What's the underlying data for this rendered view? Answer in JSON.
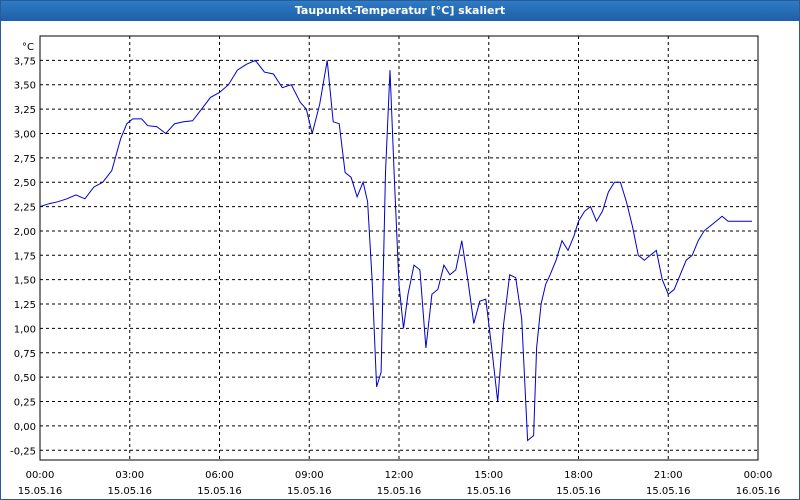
{
  "window": {
    "title": "Taupunkt-Temperatur [°C] skaliert"
  },
  "colors": {
    "line": "#0000cc",
    "grid": "#000000",
    "title_bg": "#1f5fa8"
  },
  "chart_data": {
    "type": "line",
    "title": "Taupunkt-Temperatur [°C] skaliert",
    "ylabel": "°C",
    "xlabel": "",
    "grid": true,
    "ylim": [
      -0.35,
      4.0
    ],
    "xlim": [
      0,
      24
    ],
    "yticks": [
      "-0,25",
      "0,00",
      "0,25",
      "0,50",
      "0,75",
      "1,00",
      "1,25",
      "1,50",
      "1,75",
      "2,00",
      "2,25",
      "2,50",
      "2,75",
      "3,00",
      "3,25",
      "3,50",
      "3,75"
    ],
    "ytick_values": [
      -0.25,
      0,
      0.25,
      0.5,
      0.75,
      1.0,
      1.25,
      1.5,
      1.75,
      2.0,
      2.25,
      2.5,
      2.75,
      3.0,
      3.25,
      3.5,
      3.75
    ],
    "xticks": [
      {
        "time": "00:00",
        "date": "15.05.16",
        "hour": 0
      },
      {
        "time": "03:00",
        "date": "15.05.16",
        "hour": 3
      },
      {
        "time": "06:00",
        "date": "15.05.16",
        "hour": 6
      },
      {
        "time": "09:00",
        "date": "15.05.16",
        "hour": 9
      },
      {
        "time": "12:00",
        "date": "15.05.16",
        "hour": 12
      },
      {
        "time": "15:00",
        "date": "15.05.16",
        "hour": 15
      },
      {
        "time": "18:00",
        "date": "15.05.16",
        "hour": 18
      },
      {
        "time": "21:00",
        "date": "15.05.16",
        "hour": 21
      },
      {
        "time": "00:00",
        "date": "16.05.16",
        "hour": 24
      }
    ],
    "series": [
      {
        "x": [
          0,
          0.3,
          0.6,
          0.9,
          1.2,
          1.5,
          1.8,
          2.1,
          2.4,
          2.7,
          2.9,
          3.1,
          3.4,
          3.6,
          3.9,
          4.2,
          4.5,
          4.8,
          5.1,
          5.4,
          5.7,
          6.0,
          6.3,
          6.6,
          6.9,
          7.2,
          7.5,
          7.8,
          8.1,
          8.4,
          8.7,
          8.9,
          9.1,
          9.35,
          9.6,
          9.8,
          10.0,
          10.2,
          10.4,
          10.6,
          10.8,
          10.95,
          11.1,
          11.25,
          11.4,
          11.55,
          11.7,
          11.85,
          12.0,
          12.15,
          12.3,
          12.5,
          12.7,
          12.9,
          13.1,
          13.3,
          13.5,
          13.7,
          13.9,
          14.1,
          14.3,
          14.5,
          14.7,
          14.9,
          15.1,
          15.3,
          15.5,
          15.7,
          15.9,
          16.1,
          16.3,
          16.5,
          16.6,
          16.75,
          16.9,
          17.05,
          17.25,
          17.45,
          17.65,
          17.85,
          18.0,
          18.2,
          18.4,
          18.6,
          18.8,
          19.0,
          19.2,
          19.4,
          19.6,
          19.8,
          20.0,
          20.2,
          20.4,
          20.6,
          20.8,
          21.0,
          21.2,
          21.4,
          21.6,
          21.8,
          22.0,
          22.2,
          22.4,
          22.6,
          22.8,
          23.0,
          23.2,
          23.5,
          23.8
        ],
        "values": [
          2.25,
          2.28,
          2.3,
          2.33,
          2.37,
          2.33,
          2.45,
          2.5,
          2.62,
          2.95,
          3.1,
          3.15,
          3.15,
          3.08,
          3.07,
          3.0,
          3.1,
          3.12,
          3.13,
          3.25,
          3.37,
          3.42,
          3.5,
          3.65,
          3.71,
          3.75,
          3.63,
          3.61,
          3.47,
          3.5,
          3.32,
          3.25,
          3.0,
          3.3,
          3.75,
          3.12,
          3.1,
          2.6,
          2.55,
          2.35,
          2.5,
          2.3,
          1.5,
          0.4,
          0.55,
          2.6,
          3.65,
          2.5,
          1.45,
          1.0,
          1.35,
          1.65,
          1.6,
          0.8,
          1.35,
          1.4,
          1.65,
          1.55,
          1.6,
          1.9,
          1.5,
          1.05,
          1.28,
          1.3,
          0.8,
          0.25,
          1.05,
          1.55,
          1.52,
          1.1,
          -0.15,
          -0.1,
          0.8,
          1.25,
          1.45,
          1.55,
          1.7,
          1.9,
          1.8,
          1.95,
          2.1,
          2.2,
          2.25,
          2.1,
          2.2,
          2.4,
          2.5,
          2.5,
          2.3,
          2.05,
          1.75,
          1.7,
          1.75,
          1.8,
          1.5,
          1.35,
          1.4,
          1.55,
          1.7,
          1.75,
          1.9,
          2.0,
          2.05,
          2.1,
          2.15,
          2.1,
          2.1,
          2.1,
          2.1
        ]
      }
    ]
  }
}
